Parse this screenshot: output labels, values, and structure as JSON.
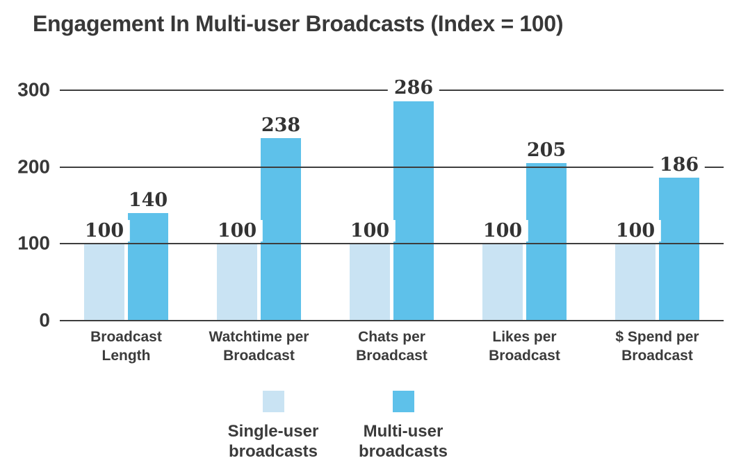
{
  "chart_data": {
    "type": "bar",
    "title": "Engagement In Multi-user Broadcasts (Index = 100)",
    "categories": [
      "Broadcast Length",
      "Watchtime per Broadcast",
      "Chats per Broadcast",
      "Likes per Broadcast",
      "$ Spend per Broadcast"
    ],
    "series": [
      {
        "name": "Single-user broadcasts",
        "color": "#c9e3f3",
        "values": [
          100,
          100,
          100,
          100,
          100
        ]
      },
      {
        "name": "Multi-user broadcasts",
        "color": "#5ec1ea",
        "values": [
          140,
          238,
          286,
          205,
          186
        ]
      }
    ],
    "yticks": [
      0,
      100,
      200,
      300
    ],
    "ylim": [
      0,
      300
    ],
    "grid": "horizontal",
    "gridline_color": "#3d3d3d",
    "text_color": "#383838",
    "legend_position": "bottom",
    "value_labels": true
  }
}
